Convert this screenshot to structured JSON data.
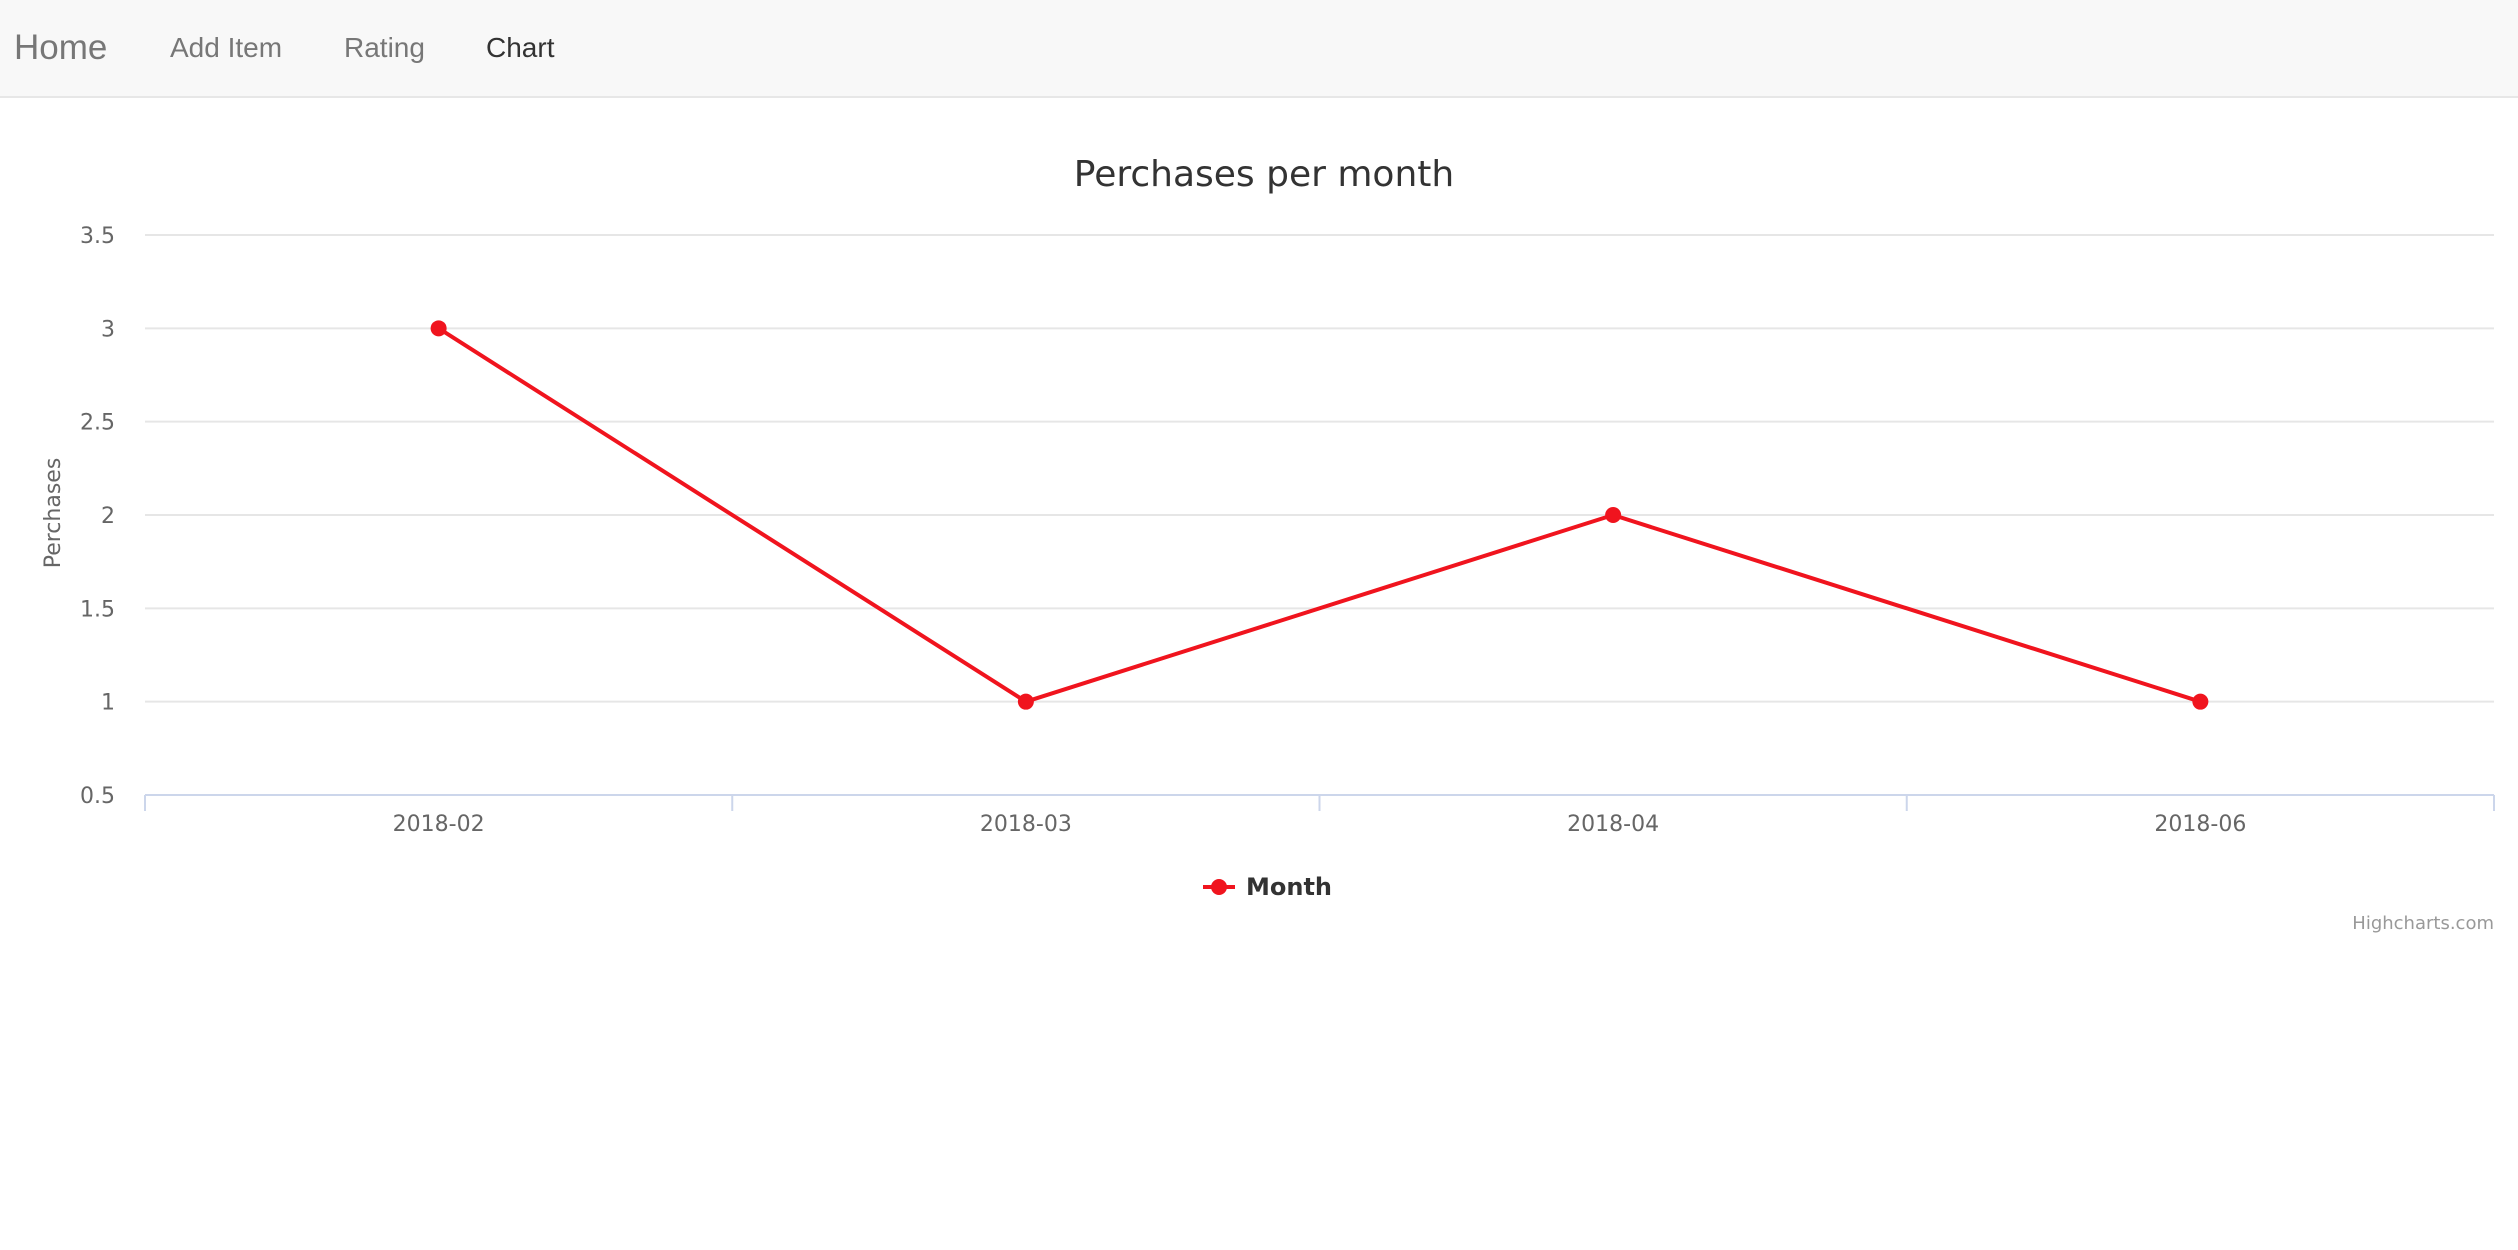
{
  "navbar": {
    "brand": "Home",
    "items": [
      {
        "label": "Add Item"
      },
      {
        "label": "Rating"
      },
      {
        "label": "Chart"
      }
    ],
    "active": "Chart"
  },
  "chart_data": {
    "type": "line",
    "title": "Perchases per month",
    "xlabel": "",
    "ylabel": "Perchases",
    "categories": [
      "2018-02",
      "2018-03",
      "2018-04",
      "2018-06"
    ],
    "series": [
      {
        "name": "Month",
        "values": [
          3,
          1,
          2,
          1
        ],
        "color": "#f0141e"
      }
    ],
    "ylim": [
      0.5,
      3.5
    ],
    "yticks": [
      0.5,
      1,
      1.5,
      2,
      2.5,
      3,
      3.5
    ],
    "grid": true,
    "legend": "bottom-center",
    "credits": "Highcharts.com"
  }
}
